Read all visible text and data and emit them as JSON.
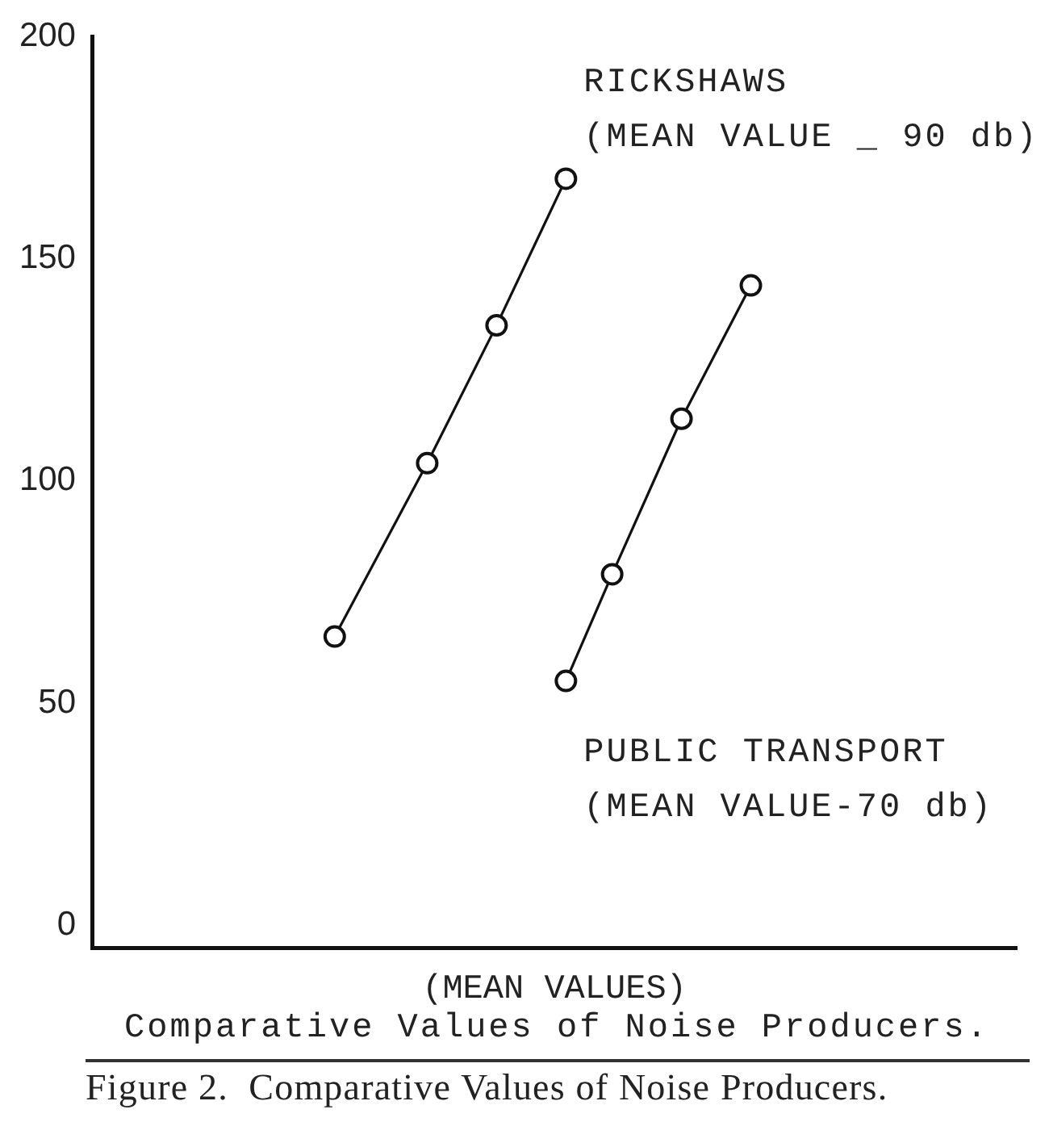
{
  "chart_data": {
    "type": "line",
    "title": "Comparative Values of Noise Producers.",
    "xlabel": "(MEAN VALUES)",
    "annotations": [
      "(MEAN VALUE _ 90 db)",
      "(MEAN VALUE-70 db)",
      "Figure 2.  Comparative Values of Noise Producers."
    ],
    "categories": [
      null,
      null,
      null,
      null,
      null,
      null,
      null,
      null,
      null,
      null,
      null,
      null,
      null,
      null,
      null,
      null,
      null,
      null,
      null,
      null,
      null,
      null,
      null,
      null,
      null,
      null,
      null,
      null,
      null,
      null,
      null,
      null,
      null,
      null,
      null,
      null,
      null,
      null,
      null,
      null
    ],
    "series": [
      {
        "name": "RICKSHAWS",
        "color": "#111111",
        "values": [
          null,
          null,
          null,
          null,
          null,
          null,
          null,
          null,
          null,
          null,
          65,
          null,
          null,
          null,
          104,
          null,
          null,
          135,
          null,
          null,
          168,
          null,
          null,
          null,
          null,
          null,
          null,
          null,
          null,
          null,
          null,
          null,
          null,
          null,
          null,
          null,
          null,
          null,
          null,
          null
        ]
      },
      {
        "name": "PUBLIC TRANSPORT",
        "color": "#111111",
        "values": [
          null,
          null,
          null,
          null,
          null,
          null,
          null,
          null,
          null,
          null,
          null,
          null,
          null,
          null,
          null,
          null,
          null,
          null,
          null,
          null,
          55,
          null,
          79,
          null,
          null,
          114,
          null,
          null,
          144,
          null,
          null,
          null,
          null,
          null,
          null,
          null,
          null,
          null,
          null,
          null
        ]
      }
    ],
    "ylim": [
      -5,
      200
    ],
    "yticks": [
      0,
      50,
      100,
      150,
      200
    ],
    "tick_labels": "y",
    "marker": "circle",
    "line_style": "solid"
  }
}
